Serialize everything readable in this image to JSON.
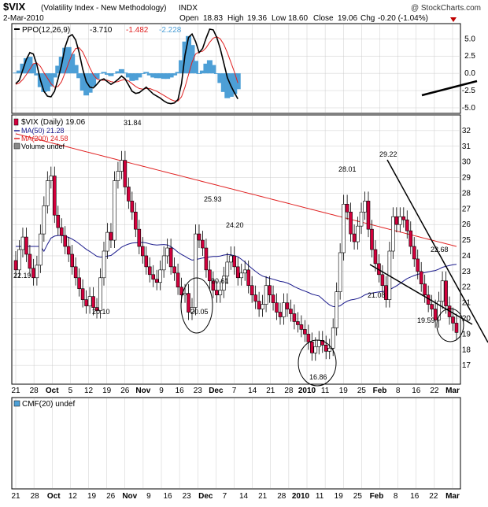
{
  "header": {
    "symbol": "$VIX",
    "name": "(Volatility Index - New Methodology)",
    "exchange": "INDX",
    "date": "2-Mar-2010",
    "open_label": "Open",
    "open": "18.83",
    "high_label": "High",
    "high": "19.36",
    "low_label": "Low",
    "low": "18.60",
    "close_label": "Close",
    "close": "19.06",
    "chg_label": "Chg",
    "chg": "-0.20 (-1.04%)",
    "watermark": "@ StockCharts.com"
  },
  "colors": {
    "up": "#ffffff",
    "down": "#d2003c",
    "candle_outline": "#000000",
    "ma50": "#1a1a8c",
    "ma200": "#e02020",
    "ppo_line": "#000000",
    "ppo_signal": "#e02020",
    "histogram": "#4d9fd6",
    "grid": "#cccccc",
    "chg_marker": "#c00000"
  },
  "chart_data": [
    {
      "type": "line",
      "panel": "ppo",
      "label": "PPO(12,26,9)",
      "values_text": "-3.710, -1.482, -2.228",
      "value1": "-3.710",
      "value2": "-1.482",
      "value3": "-2.228",
      "ylim": [
        -5.8,
        7.2
      ],
      "yticks": [
        "5.0",
        "2.5",
        "0.0",
        "-2.5",
        "-5.0"
      ],
      "ppo": [
        -1.5,
        -1.0,
        0.5,
        2.0,
        3.0,
        2.8,
        1.2,
        -1.0,
        -2.6,
        -3.3,
        -3.4,
        -2.6,
        -0.8,
        1.2,
        3.8,
        5.3,
        5.6,
        4.8,
        3.0,
        0.6,
        -1.2,
        -2.0,
        -2.1,
        -1.6,
        -1.0,
        -0.8,
        -1.2,
        -1.6,
        -1.3,
        -0.9,
        -0.4,
        -0.8,
        -1.7,
        -2.6,
        -2.9,
        -2.8,
        -2.4,
        -2.0,
        -2.5,
        -3.0,
        -3.3,
        -3.6,
        -4.0,
        -4.3,
        -4.4,
        -4.3,
        -3.8,
        -1.5,
        2.6,
        5.2,
        5.7,
        4.6,
        3.0,
        3.6,
        5.1,
        6.4,
        6.3,
        5.2,
        3.6,
        1.5,
        -0.6,
        -1.8,
        -2.8,
        -3.7
      ],
      "signal": [
        -1.6,
        -1.4,
        -0.9,
        -0.2,
        0.6,
        1.4,
        1.5,
        1.0,
        0.1,
        -0.7,
        -1.5,
        -2.0,
        -1.9,
        -1.2,
        0.1,
        1.5,
        2.8,
        3.6,
        3.7,
        3.1,
        2.0,
        0.8,
        -0.2,
        -0.8,
        -1.0,
        -1.0,
        -1.0,
        -1.2,
        -1.3,
        -1.2,
        -1.0,
        -0.9,
        -1.1,
        -1.5,
        -1.9,
        -2.2,
        -2.3,
        -2.2,
        -2.2,
        -2.4,
        -2.6,
        -2.9,
        -3.2,
        -3.5,
        -3.8,
        -4.0,
        -4.0,
        -3.4,
        -2.0,
        -0.2,
        1.6,
        2.8,
        3.1,
        3.2,
        3.7,
        4.5,
        5.1,
        5.3,
        5.0,
        4.2,
        3.0,
        1.6,
        0.2,
        -1.4
      ]
    },
    {
      "type": "candlestick",
      "panel": "price",
      "label": "$VIX (Daily) 19.06",
      "legend": [
        {
          "name": "MA(50) 21.28",
          "color_key": "ma50"
        },
        {
          "name": "MA(200) 24.58",
          "color_key": "ma200"
        },
        {
          "name": "Volume undef",
          "color_key": "candle_outline"
        }
      ],
      "ylim": [
        15.8,
        33.0
      ],
      "yticks": [
        "32",
        "31",
        "30",
        "29",
        "28",
        "27",
        "26",
        "25",
        "24",
        "23",
        "22",
        "21",
        "20",
        "19",
        "18",
        "17"
      ],
      "xticks_top": [
        "21",
        "28",
        "Oct",
        "5",
        "12",
        "19",
        "26",
        "Nov",
        "9",
        "16",
        "23",
        "Dec",
        "7",
        "14",
        "21",
        "28",
        "2010",
        "11",
        "19",
        "25",
        "Feb",
        "8",
        "16",
        "22",
        "Mar"
      ],
      "xticks_bottom": [
        "21",
        "28",
        "Oct",
        "12",
        "19",
        "26",
        "Nov",
        "9",
        "16",
        "23",
        "Dec",
        "7",
        "14",
        "21",
        "28",
        "2010",
        "11",
        "19",
        "25",
        "Feb",
        "8",
        "16",
        "22",
        "Mar"
      ],
      "closes": [
        23.1,
        24.4,
        25.2,
        24.1,
        23.2,
        22.6,
        23.4,
        25.4,
        27.2,
        28.8,
        29.1,
        26.6,
        25.8,
        25.3,
        24.6,
        24.1,
        23.3,
        22.6,
        21.9,
        21.2,
        20.8,
        21.4,
        20.7,
        20.5,
        22.6,
        24.3,
        25.5,
        25.0,
        28.8,
        29.4,
        30.1,
        28.4,
        27.5,
        26.8,
        25.7,
        24.6,
        24.0,
        23.3,
        22.8,
        22.5,
        22.3,
        23.1,
        24.0,
        24.5,
        23.3,
        22.9,
        22.0,
        21.5,
        21.6,
        20.4,
        20.7,
        25.4,
        25.0,
        24.5,
        23.1,
        22.4,
        21.8,
        21.5,
        21.8,
        22.7,
        23.6,
        24.0,
        23.3,
        22.6,
        22.9,
        23.1,
        22.1,
        21.5,
        21.1,
        20.6,
        20.9,
        22.1,
        21.5,
        21.0,
        20.4,
        20.1,
        21.0,
        20.6,
        20.3,
        19.8,
        19.6,
        19.3,
        19.0,
        18.5,
        17.8,
        18.2,
        18.6,
        18.3,
        17.9,
        18.1,
        19.4,
        21.7,
        24.2,
        27.3,
        26.8,
        25.4,
        24.9,
        25.9,
        26.8,
        27.5,
        25.7,
        24.4,
        23.5,
        22.8,
        22.1,
        21.2,
        24.3,
        26.5,
        26.0,
        26.5,
        26.3,
        25.6,
        24.6,
        23.8,
        23.0,
        22.2,
        21.5,
        20.9,
        20.6,
        19.9,
        21.1,
        22.4,
        20.8,
        20.1,
        19.7,
        19.1
      ],
      "annotations": [
        "22.19",
        "20.10",
        "31.84",
        "25.93",
        "20.05",
        "20.61",
        "24.20",
        "16.86",
        "28.01",
        "29.22",
        "21.08",
        "22.68",
        "19.59"
      ]
    },
    {
      "type": "line",
      "panel": "cmf",
      "label": "CMF(20) undef",
      "values": []
    }
  ]
}
